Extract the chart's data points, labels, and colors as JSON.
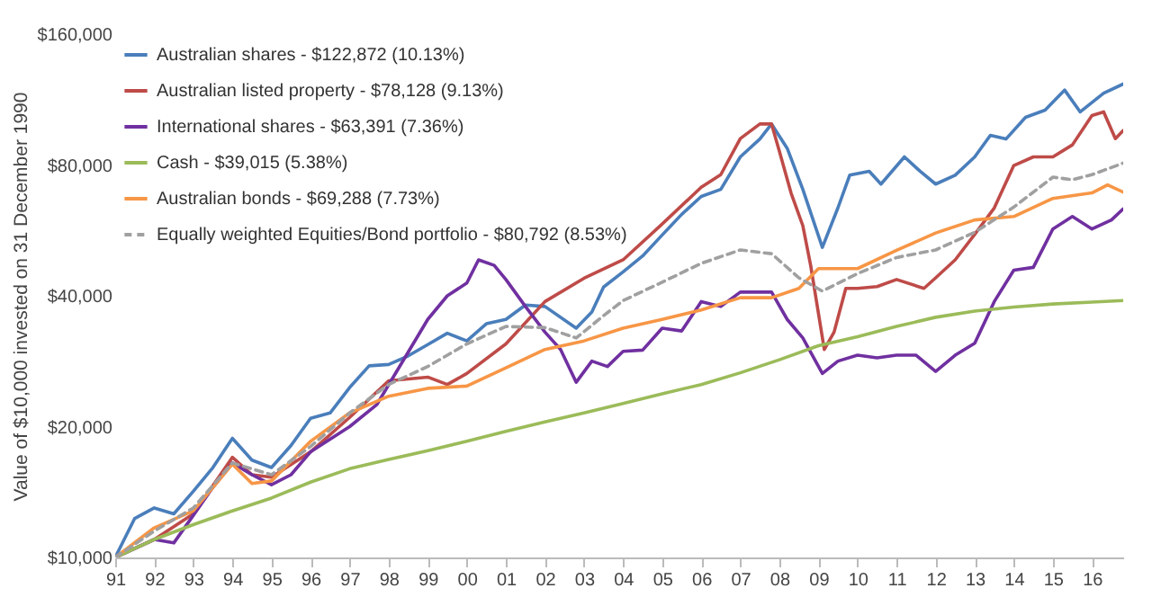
{
  "chart_data": {
    "type": "line",
    "ylabel": "Value of $10,000 invested on 31 December 1990",
    "log": "y",
    "grid": false,
    "legend": "top left",
    "marker": "none",
    "xlim": [
      1991,
      2016.8
    ],
    "xticks": [
      {
        "value": 1991,
        "label": "91"
      },
      {
        "value": 1992,
        "label": "92"
      },
      {
        "value": 1993,
        "label": "93"
      },
      {
        "value": 1994,
        "label": "94"
      },
      {
        "value": 1995,
        "label": "95"
      },
      {
        "value": 1996,
        "label": "96"
      },
      {
        "value": 1997,
        "label": "97"
      },
      {
        "value": 1998,
        "label": "98"
      },
      {
        "value": 1999,
        "label": "99"
      },
      {
        "value": 2000,
        "label": "00"
      },
      {
        "value": 2001,
        "label": "01"
      },
      {
        "value": 2002,
        "label": "02"
      },
      {
        "value": 2003,
        "label": "03"
      },
      {
        "value": 2004,
        "label": "04"
      },
      {
        "value": 2005,
        "label": "05"
      },
      {
        "value": 2006,
        "label": "06"
      },
      {
        "value": 2007,
        "label": "07"
      },
      {
        "value": 2008,
        "label": "08"
      },
      {
        "value": 2009,
        "label": "09"
      },
      {
        "value": 2010,
        "label": "10"
      },
      {
        "value": 2011,
        "label": "11"
      },
      {
        "value": 2012,
        "label": "12"
      },
      {
        "value": 2013,
        "label": "13"
      },
      {
        "value": 2014,
        "label": "14"
      },
      {
        "value": 2015,
        "label": "15"
      },
      {
        "value": 2016,
        "label": "16"
      }
    ],
    "ylim": [
      10000,
      160000
    ],
    "yticks": [
      {
        "value": 10000,
        "label": "$10,000"
      },
      {
        "value": 20000,
        "label": "$20,000"
      },
      {
        "value": 40000,
        "label": "$40,000"
      },
      {
        "value": 80000,
        "label": "$80,000"
      },
      {
        "value": 160000,
        "label": "$160,000"
      }
    ],
    "series": [
      {
        "name": "Australian shares - $122,872 (10.13%)",
        "color": "#4a7ebb",
        "x": [
          1991,
          1991.5,
          1992,
          1992.5,
          1993,
          1993.5,
          1994,
          1994.5,
          1995,
          1995.5,
          1996,
          1996.5,
          1997,
          1997.5,
          1998,
          1998.5,
          1999,
          1999.5,
          2000,
          2000.5,
          2001,
          2001.5,
          2002,
          2002.8,
          2003.2,
          2003.5,
          2004,
          2004.5,
          2005,
          2005.5,
          2006,
          2006.5,
          2007,
          2007.5,
          2007.8,
          2008.2,
          2008.6,
          2009.1,
          2009.5,
          2009.8,
          2010.3,
          2010.6,
          2011.2,
          2011.6,
          2012,
          2012.5,
          2013,
          2013.4,
          2013.8,
          2014.3,
          2014.8,
          2015.3,
          2015.7,
          2016.3,
          2016.8
        ],
        "values": [
          10000,
          12300,
          13000,
          12600,
          14200,
          16100,
          18800,
          16750,
          16100,
          18100,
          20900,
          21500,
          24600,
          27600,
          27800,
          29100,
          30900,
          32800,
          31500,
          34500,
          35300,
          38100,
          37800,
          33700,
          36700,
          41900,
          45400,
          49400,
          55200,
          61600,
          67700,
          70300,
          83500,
          91800,
          99400,
          87400,
          70300,
          51700,
          63800,
          75800,
          77400,
          72300,
          83500,
          77400,
          72300,
          75800,
          83500,
          93600,
          91800,
          103000,
          107000,
          119000,
          106000,
          117000,
          122872
        ]
      },
      {
        "name": "Australian listed property - $78,128 (9.13%)",
        "color": "#be4b48",
        "x": [
          1991,
          1992,
          1993,
          1994,
          1994.5,
          1995,
          1996,
          1997,
          1998,
          1999,
          1999.5,
          2000,
          2001,
          2002,
          2003,
          2004,
          2005,
          2006,
          2006.5,
          2007,
          2007.5,
          2007.8,
          2008,
          2008.3,
          2008.6,
          2008.8,
          2009.15,
          2009.4,
          2009.7,
          2010,
          2010.5,
          2011,
          2011.7,
          2012,
          2012.5,
          2013,
          2013.5,
          2014,
          2014.5,
          2015,
          2015.5,
          2016,
          2016.3,
          2016.6,
          2016.8
        ],
        "values": [
          10000,
          11000,
          12600,
          17000,
          15500,
          15300,
          17500,
          21000,
          25500,
          26000,
          25000,
          26500,
          31000,
          38800,
          43900,
          48400,
          58500,
          71100,
          76000,
          92000,
          99400,
          99400,
          86000,
          68900,
          58000,
          47000,
          30100,
          33000,
          41600,
          41600,
          42000,
          43600,
          41600,
          44000,
          48400,
          55400,
          63700,
          79800,
          83500,
          83500,
          89000,
          104000,
          106000,
          92000,
          96000
        ]
      },
      {
        "name": "International shares - $63,391 (7.36%)",
        "color": "#7030a0",
        "x": [
          1991,
          1992,
          1992.5,
          1993,
          1993.5,
          1994,
          1994.5,
          1995,
          1995.5,
          1996,
          1997,
          1997.7,
          1999,
          1999.5,
          2000,
          2000.3,
          2000.7,
          2001,
          2001.5,
          2002,
          2002.4,
          2002.8,
          2003.2,
          2003.6,
          2004,
          2004.5,
          2005,
          2005.5,
          2006,
          2006.5,
          2007,
          2007.5,
          2007.8,
          2008.2,
          2008.6,
          2009.1,
          2009.5,
          2010,
          2010.5,
          2011,
          2011.5,
          2012,
          2012.5,
          2013,
          2013.5,
          2014,
          2014.5,
          2015,
          2015.5,
          2016,
          2016.5,
          2016.8
        ],
        "values": [
          10000,
          11000,
          10800,
          12500,
          14500,
          16500,
          15500,
          14700,
          15500,
          17500,
          20000,
          22500,
          35300,
          40000,
          42800,
          48400,
          47000,
          43600,
          37800,
          33000,
          30100,
          25300,
          28300,
          27500,
          29800,
          30000,
          33700,
          33200,
          38800,
          37800,
          40800,
          40800,
          40800,
          35300,
          32000,
          26500,
          28300,
          29200,
          28800,
          29200,
          29200,
          26800,
          29200,
          31100,
          38800,
          45800,
          46500,
          57000,
          60900,
          57000,
          59800,
          63391
        ]
      },
      {
        "name": "Cash - $39,015 (5.38%)",
        "color": "#9bbb59",
        "x": [
          1991,
          1992,
          1993,
          1994,
          1995,
          1996,
          1997,
          1998,
          1999,
          2000,
          2001,
          2002,
          2003,
          2004,
          2005,
          2006,
          2007,
          2008,
          2009,
          2010,
          2011,
          2012,
          2013,
          2014,
          2015,
          2016,
          2016.8
        ],
        "values": [
          10000,
          11000,
          11900,
          12800,
          13700,
          14900,
          16000,
          16800,
          17600,
          18500,
          19500,
          20500,
          21500,
          22600,
          23800,
          25000,
          26600,
          28500,
          30700,
          32200,
          34000,
          35700,
          36900,
          37700,
          38300,
          38700,
          39015
        ]
      },
      {
        "name": "Australian bonds - $69,288 (7.73%)",
        "color": "#f79646",
        "x": [
          1991,
          1992,
          1993,
          1994,
          1994.5,
          1995,
          1996,
          1997,
          1998,
          1999,
          2000,
          2001,
          2002,
          2003,
          2004,
          2005,
          2006,
          2007,
          2007.8,
          2008.5,
          2009,
          2010,
          2011,
          2012,
          2013,
          2014,
          2015,
          2016,
          2016.4,
          2016.8
        ],
        "values": [
          10000,
          11700,
          12800,
          16400,
          14800,
          15000,
          18500,
          21500,
          23500,
          24500,
          24800,
          27300,
          30100,
          31500,
          33700,
          35300,
          37100,
          39600,
          39600,
          41600,
          46200,
          46200,
          50900,
          55800,
          59800,
          60900,
          67000,
          69000,
          72000,
          69288
        ]
      },
      {
        "name": "Equally weighted Equities/Bond portfolio - $80,792 (8.53%)",
        "color": "#a0a0a0",
        "line_style": "dashed",
        "x": [
          1991,
          1992,
          1993,
          1994,
          1995,
          1996,
          1997,
          1998,
          1999,
          2000,
          2001,
          2002,
          2002.8,
          2003.5,
          2004,
          2005,
          2006,
          2007,
          2007.8,
          2008.5,
          2009.1,
          2010,
          2011,
          2012,
          2013,
          2014,
          2015,
          2015.5,
          2016,
          2016.8
        ],
        "values": [
          10000,
          11500,
          13000,
          16500,
          15500,
          18000,
          21500,
          25000,
          27500,
          31000,
          34000,
          33800,
          32000,
          36000,
          39000,
          43000,
          47500,
          51000,
          50000,
          44000,
          41000,
          45000,
          49000,
          51000,
          56000,
          64000,
          75000,
          74000,
          76000,
          80792
        ]
      }
    ]
  }
}
